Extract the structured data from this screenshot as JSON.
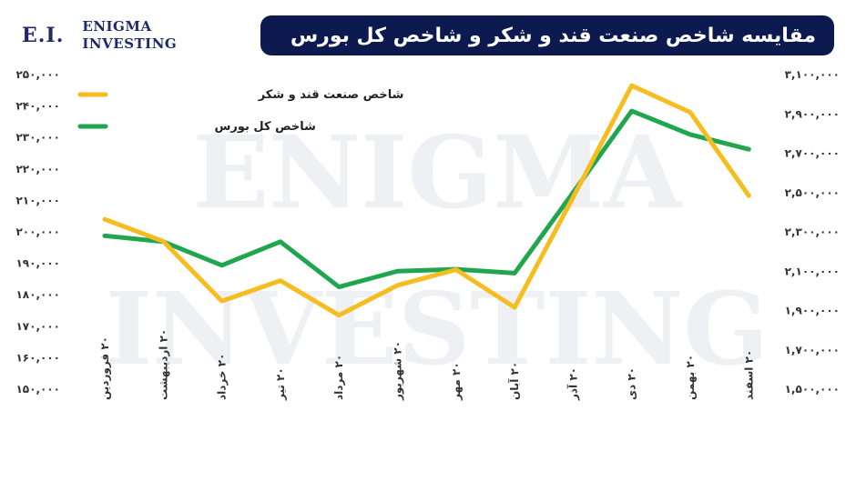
{
  "brand": {
    "mark": "E.I.",
    "line1": "ENIGMA",
    "line2": "INVESTING",
    "watermark_line1": "ENIGMA",
    "watermark_line2": "INVESTING"
  },
  "colors": {
    "banner": "#0c1a4f",
    "sugar_series": "#f5bd1f",
    "total_series": "#21a650"
  },
  "chart_data": {
    "type": "line",
    "title": "مقایسه شاخص صنعت قند و شکر و شاخص کل بورس",
    "categories": [
      "۲۰ فروردین",
      "۲۰ اردیبهشت",
      "۲۰ خرداد",
      "۲۰ تیر",
      "۲۰ مرداد",
      "۲۰ شهریور",
      "۲۰ مهر",
      "۲۰ آبان",
      "۲۰ آذر",
      "۲۰ دی",
      "۲۰ بهمن",
      "۲۰ اسفند"
    ],
    "series": [
      {
        "name": "شاخص صنعت قند و شکر",
        "axis": "left",
        "color": "#f5bd1f",
        "values": [
          204000,
          197000,
          178000,
          184500,
          173500,
          183000,
          188000,
          176000,
          211000,
          246500,
          238000,
          211500
        ]
      },
      {
        "name": "شاخص کل بورس",
        "axis": "right",
        "color": "#21a650",
        "values": [
          2280000,
          2250000,
          2130000,
          2250000,
          2020000,
          2100000,
          2110000,
          2090000,
          2500000,
          2915000,
          2795000,
          2720000
        ]
      }
    ],
    "y_left": {
      "ylim": [
        150000,
        250000
      ],
      "ticks": [
        150000,
        160000,
        170000,
        180000,
        190000,
        200000,
        210000,
        220000,
        230000,
        240000,
        250000
      ],
      "tick_labels": [
        "۱۵۰,۰۰۰",
        "۱۶۰,۰۰۰",
        "۱۷۰,۰۰۰",
        "۱۸۰,۰۰۰",
        "۱۹۰,۰۰۰",
        "۲۰۰,۰۰۰",
        "۲۱۰,۰۰۰",
        "۲۲۰,۰۰۰",
        "۲۳۰,۰۰۰",
        "۲۴۰,۰۰۰",
        "۲۵۰,۰۰۰"
      ]
    },
    "y_right": {
      "ylim": [
        1500000,
        3100000
      ],
      "ticks": [
        1500000,
        1700000,
        1900000,
        2100000,
        2300000,
        2500000,
        2700000,
        2900000,
        3100000
      ],
      "tick_labels": [
        "۱,۵۰۰,۰۰۰",
        "۱,۷۰۰,۰۰۰",
        "۱,۹۰۰,۰۰۰",
        "۲,۱۰۰,۰۰۰",
        "۲,۳۰۰,۰۰۰",
        "۲,۵۰۰,۰۰۰",
        "۲,۷۰۰,۰۰۰",
        "۲,۹۰۰,۰۰۰",
        "۳,۱۰۰,۰۰۰"
      ]
    },
    "legend": "top-left",
    "grid": false
  }
}
